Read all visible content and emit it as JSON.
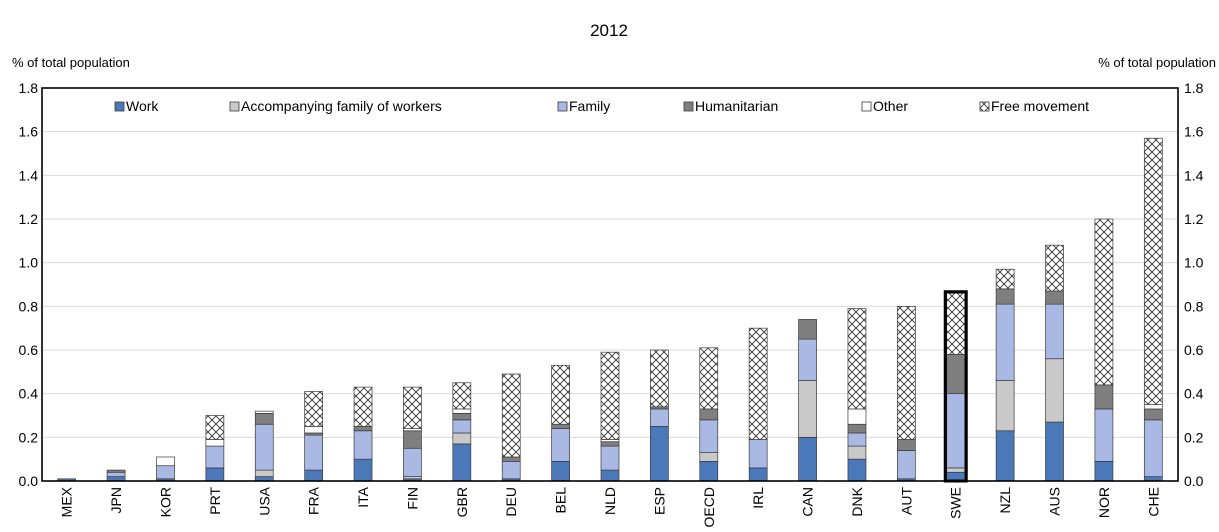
{
  "chart_data": {
    "type": "bar",
    "stacked": true,
    "title": "2012",
    "ylabel_left": "% of total population",
    "ylabel_right": "% of total population",
    "ylim": [
      0,
      1.8
    ],
    "yticks": [
      "0.0",
      "0.2",
      "0.4",
      "0.6",
      "0.8",
      "1.0",
      "1.2",
      "1.4",
      "1.6",
      "1.8"
    ],
    "grid": "horizontal",
    "legend_position": "top",
    "highlighted_category": "SWE",
    "categories": [
      "MEX",
      "JPN",
      "KOR",
      "PRT",
      "USA",
      "FRA",
      "ITA",
      "FIN",
      "GBR",
      "DEU",
      "BEL",
      "NLD",
      "ESP",
      "OECD",
      "IRL",
      "CAN",
      "DNK",
      "AUT",
      "SWE",
      "NZL",
      "AUS",
      "NOR",
      "CHE"
    ],
    "series": [
      {
        "name": "Work",
        "color": "#4a78b8",
        "pattern": "solid",
        "values": [
          0.01,
          0.02,
          0.01,
          0.06,
          0.02,
          0.05,
          0.1,
          0.01,
          0.17,
          0.01,
          0.09,
          0.05,
          0.25,
          0.09,
          0.06,
          0.2,
          0.1,
          0.01,
          0.04,
          0.23,
          0.27,
          0.09,
          0.02
        ]
      },
      {
        "name": "Accompanying family of workers",
        "color": "#c9c9c9",
        "pattern": "solid",
        "values": [
          0.0,
          0.0,
          0.0,
          0.0,
          0.03,
          0.0,
          0.0,
          0.01,
          0.05,
          0.0,
          0.0,
          0.0,
          0.0,
          0.04,
          0.0,
          0.26,
          0.06,
          0.0,
          0.02,
          0.23,
          0.29,
          0.0,
          0.0
        ]
      },
      {
        "name": "Family",
        "color": "#a9b9e3",
        "pattern": "solid",
        "values": [
          0.0,
          0.02,
          0.06,
          0.1,
          0.21,
          0.16,
          0.13,
          0.13,
          0.06,
          0.08,
          0.15,
          0.11,
          0.08,
          0.15,
          0.13,
          0.19,
          0.06,
          0.13,
          0.34,
          0.35,
          0.25,
          0.24,
          0.26
        ]
      },
      {
        "name": "Humanitarian",
        "color": "#7f7f7f",
        "pattern": "solid",
        "values": [
          0.0,
          0.01,
          0.0,
          0.0,
          0.05,
          0.01,
          0.02,
          0.08,
          0.03,
          0.02,
          0.02,
          0.02,
          0.01,
          0.05,
          0.0,
          0.09,
          0.04,
          0.05,
          0.18,
          0.07,
          0.06,
          0.11,
          0.05
        ]
      },
      {
        "name": "Other",
        "color": "#ffffff",
        "pattern": "solid",
        "values": [
          0.0,
          0.0,
          0.04,
          0.03,
          0.01,
          0.03,
          0.0,
          0.01,
          0.02,
          0.0,
          0.0,
          0.01,
          0.0,
          0.0,
          0.0,
          0.0,
          0.07,
          0.0,
          0.0,
          0.0,
          0.0,
          0.0,
          0.02
        ]
      },
      {
        "name": "Free movement",
        "color": "#ffffff",
        "pattern": "crosshatch",
        "values": [
          0.0,
          0.0,
          0.0,
          0.11,
          0.0,
          0.16,
          0.18,
          0.19,
          0.12,
          0.38,
          0.27,
          0.4,
          0.26,
          0.28,
          0.51,
          0.0,
          0.46,
          0.61,
          0.28,
          0.09,
          0.21,
          0.76,
          1.22
        ]
      }
    ]
  }
}
